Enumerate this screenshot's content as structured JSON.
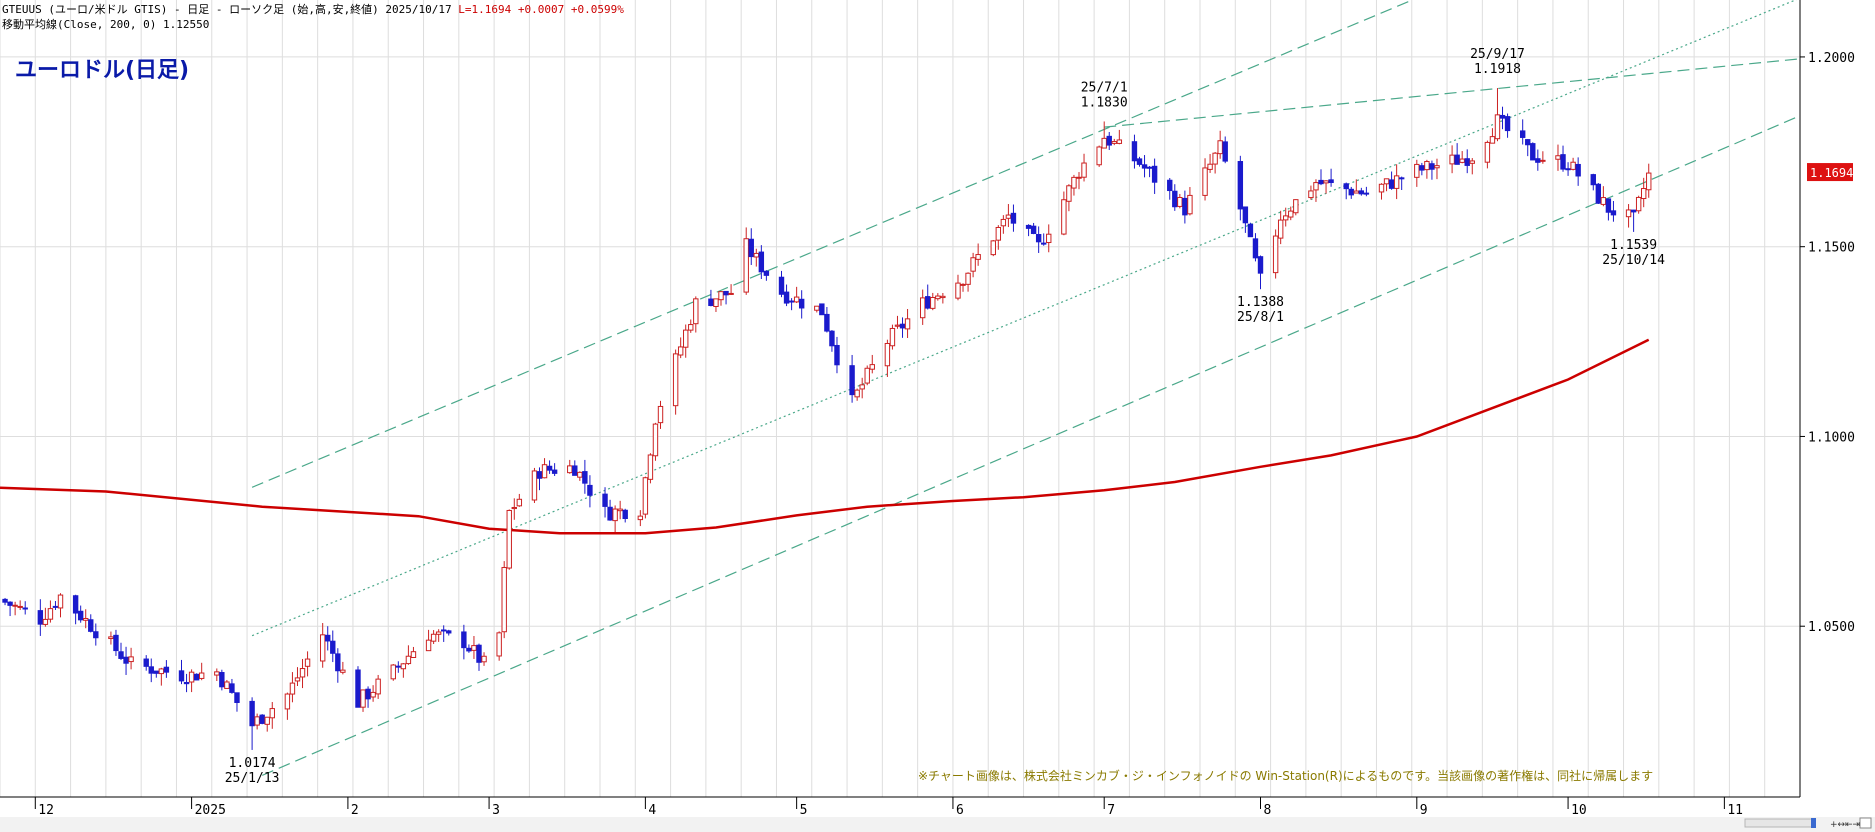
{
  "header": {
    "line1_main": "GTEUUS (ユーロ/米ドル GTIS) - 日足 - ローソク足 (始,高,安,終値)  2025/10/17 ",
    "line1_change": "L=1.1694 +0.0007  +0.0599%",
    "line2": "移動平均線(Close, 200, 0) 1.12550"
  },
  "title": "ユーロドル(日足)",
  "credit": "※チャート画像は、株式会社ミンカブ・ジ・インフォノイドの Win-Station(R)によるものです。当該画像の著作権は、同社に帰属します",
  "colors": {
    "up": "#cc2222",
    "down": "#1a1acc",
    "ma": "#cc0000",
    "channel": "#4aa88a",
    "grid": "#dedede",
    "last_box": "#dd1111"
  },
  "chart_data": {
    "type": "candlestick",
    "y_axis": {
      "min": 1.005,
      "max": 1.215,
      "ticks": [
        {
          "value": 1.2,
          "label": "1.2000"
        },
        {
          "value": 1.15,
          "label": "1.1500"
        },
        {
          "value": 1.1,
          "label": "1.1000"
        },
        {
          "value": 1.05,
          "label": "1.0500"
        }
      ]
    },
    "x_axis": {
      "start": "2024-11-24",
      "end": "2025-11-16",
      "ticks": [
        {
          "date": "2024-12-01",
          "label": "12"
        },
        {
          "date": "2025-01-01",
          "label": "2025"
        },
        {
          "date": "2025-02-01",
          "label": "2"
        },
        {
          "date": "2025-03-01",
          "label": "3"
        },
        {
          "date": "2025-04-01",
          "label": "4"
        },
        {
          "date": "2025-05-01",
          "label": "5"
        },
        {
          "date": "2025-06-01",
          "label": "6"
        },
        {
          "date": "2025-07-01",
          "label": "7"
        },
        {
          "date": "2025-08-01",
          "label": "8"
        },
        {
          "date": "2025-09-01",
          "label": "9"
        },
        {
          "date": "2025-10-01",
          "label": "10"
        },
        {
          "date": "2025-11-01",
          "label": "11"
        }
      ]
    },
    "last_value": {
      "value": 1.1694,
      "label": "1.1694"
    },
    "anchors": [
      {
        "date": "2024-11-24",
        "value": 1.057
      },
      {
        "date": "2024-12-02",
        "value": 1.052
      },
      {
        "date": "2024-12-06",
        "value": 1.058
      },
      {
        "date": "2024-12-20",
        "value": 1.04
      },
      {
        "date": "2024-12-31",
        "value": 1.037
      },
      {
        "date": "2025-01-06",
        "value": 1.038
      },
      {
        "date": "2025-01-13",
        "value": 1.024
      },
      {
        "date": "2025-01-20",
        "value": 1.032
      },
      {
        "date": "2025-01-27",
        "value": 1.048
      },
      {
        "date": "2025-02-03",
        "value": 1.03
      },
      {
        "date": "2025-02-10",
        "value": 1.038
      },
      {
        "date": "2025-02-17",
        "value": 1.048
      },
      {
        "date": "2025-02-24",
        "value": 1.046
      },
      {
        "date": "2025-02-28",
        "value": 1.04
      },
      {
        "date": "2025-03-03",
        "value": 1.048
      },
      {
        "date": "2025-03-05",
        "value": 1.08
      },
      {
        "date": "2025-03-11",
        "value": 1.091
      },
      {
        "date": "2025-03-18",
        "value": 1.092
      },
      {
        "date": "2025-03-24",
        "value": 1.08
      },
      {
        "date": "2025-03-31",
        "value": 1.081
      },
      {
        "date": "2025-04-03",
        "value": 1.105
      },
      {
        "date": "2025-04-11",
        "value": 1.135
      },
      {
        "date": "2025-04-18",
        "value": 1.138
      },
      {
        "date": "2025-04-21",
        "value": 1.15
      },
      {
        "date": "2025-04-28",
        "value": 1.138
      },
      {
        "date": "2025-05-06",
        "value": 1.133
      },
      {
        "date": "2025-05-12",
        "value": 1.109
      },
      {
        "date": "2025-05-19",
        "value": 1.125
      },
      {
        "date": "2025-05-26",
        "value": 1.135
      },
      {
        "date": "2025-06-03",
        "value": 1.142
      },
      {
        "date": "2025-06-12",
        "value": 1.158
      },
      {
        "date": "2025-06-18",
        "value": 1.15
      },
      {
        "date": "2025-06-26",
        "value": 1.17
      },
      {
        "date": "2025-07-01",
        "value": 1.179
      },
      {
        "date": "2025-07-08",
        "value": 1.172
      },
      {
        "date": "2025-07-17",
        "value": 1.16
      },
      {
        "date": "2025-07-24",
        "value": 1.176
      },
      {
        "date": "2025-07-28",
        "value": 1.16
      },
      {
        "date": "2025-08-01",
        "value": 1.141
      },
      {
        "date": "2025-08-05",
        "value": 1.158
      },
      {
        "date": "2025-08-12",
        "value": 1.167
      },
      {
        "date": "2025-08-22",
        "value": 1.164
      },
      {
        "date": "2025-09-01",
        "value": 1.17
      },
      {
        "date": "2025-09-12",
        "value": 1.174
      },
      {
        "date": "2025-09-17",
        "value": 1.183
      },
      {
        "date": "2025-09-24",
        "value": 1.174
      },
      {
        "date": "2025-10-01",
        "value": 1.172
      },
      {
        "date": "2025-10-09",
        "value": 1.16
      },
      {
        "date": "2025-10-14",
        "value": 1.157
      },
      {
        "date": "2025-10-17",
        "value": 1.1694
      }
    ],
    "moving_average": {
      "name": "移動平均線(Close, 200, 0)",
      "points": [
        {
          "date": "2024-11-24",
          "value": 1.0865
        },
        {
          "date": "2024-12-15",
          "value": 1.0855
        },
        {
          "date": "2025-01-15",
          "value": 1.0815
        },
        {
          "date": "2025-02-15",
          "value": 1.079
        },
        {
          "date": "2025-03-01",
          "value": 1.0757
        },
        {
          "date": "2025-03-15",
          "value": 1.0745
        },
        {
          "date": "2025-04-01",
          "value": 1.0745
        },
        {
          "date": "2025-04-15",
          "value": 1.076
        },
        {
          "date": "2025-05-01",
          "value": 1.0792
        },
        {
          "date": "2025-05-15",
          "value": 1.0815
        },
        {
          "date": "2025-06-01",
          "value": 1.083
        },
        {
          "date": "2025-06-15",
          "value": 1.084
        },
        {
          "date": "2025-07-01",
          "value": 1.0858
        },
        {
          "date": "2025-07-15",
          "value": 1.088
        },
        {
          "date": "2025-08-01",
          "value": 1.092
        },
        {
          "date": "2025-08-15",
          "value": 1.095
        },
        {
          "date": "2025-09-01",
          "value": 1.1
        },
        {
          "date": "2025-09-15",
          "value": 1.107
        },
        {
          "date": "2025-10-01",
          "value": 1.115
        },
        {
          "date": "2025-10-17",
          "value": 1.1255
        }
      ]
    },
    "trend_lines": [
      {
        "style": "dashed",
        "from": {
          "date": "2025-01-13",
          "value": 1.0866
        },
        "to": {
          "date": "2025-09-01",
          "value": 1.2155
        }
      },
      {
        "style": "dashed",
        "from": {
          "date": "2025-01-15",
          "value": 1.0107
        },
        "to": {
          "date": "2025-11-16",
          "value": 1.1845
        }
      },
      {
        "style": "dotted",
        "from": {
          "date": "2025-01-13",
          "value": 1.0475
        },
        "to": {
          "date": "2025-11-16",
          "value": 1.2155
        }
      },
      {
        "style": "dashed",
        "from": {
          "date": "2025-07-01",
          "value": 1.1815
        },
        "to": {
          "date": "2025-11-16",
          "value": 1.1995
        }
      }
    ],
    "annotations": [
      {
        "date": "2025-01-13",
        "value": 1.0174,
        "value_label": "1.0174",
        "date_label": "25/1/13",
        "position": "below"
      },
      {
        "date": "2025-07-01",
        "value": 1.183,
        "value_label": "1.1830",
        "date_label": "25/7/1",
        "position": "above"
      },
      {
        "date": "2025-08-01",
        "value": 1.1388,
        "value_label": "1.1388",
        "date_label": "25/8/1",
        "position": "below"
      },
      {
        "date": "2025-09-17",
        "value": 1.1918,
        "value_label": "1.1918",
        "date_label": "25/9/17",
        "position": "above"
      },
      {
        "date": "2025-10-14",
        "value": 1.1539,
        "value_label": "1.1539",
        "date_label": "25/10/14",
        "position": "below"
      }
    ]
  }
}
